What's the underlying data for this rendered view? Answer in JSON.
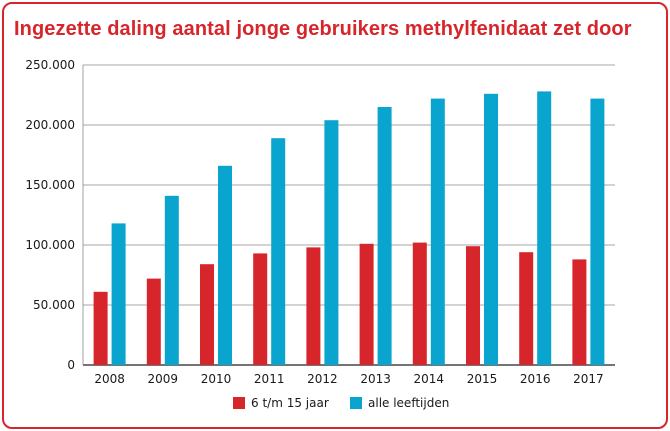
{
  "chart_data": {
    "type": "bar",
    "title": "Ingezette daling aantal jonge gebruikers methylfenidaat zet door",
    "categories": [
      "2008",
      "2009",
      "2010",
      "2011",
      "2012",
      "2013",
      "2014",
      "2015",
      "2016",
      "2017"
    ],
    "series": [
      {
        "name": "6 t/m 15 jaar",
        "color": "#d7262b",
        "values": [
          61000,
          72000,
          84000,
          93000,
          98000,
          101000,
          102000,
          99000,
          94000,
          88000
        ]
      },
      {
        "name": "alle leeftijden",
        "color": "#0aa5cf",
        "values": [
          118000,
          141000,
          166000,
          189000,
          204000,
          215000,
          222000,
          226000,
          228000,
          222000
        ]
      }
    ],
    "ylim": [
      0,
      250000
    ],
    "yticks": [
      0,
      50000,
      100000,
      150000,
      200000,
      250000
    ],
    "ytick_labels": [
      "0",
      "50.000",
      "100.000",
      "150.000",
      "200.000",
      "250.000"
    ],
    "grid": true,
    "legend_position": "bottom-center"
  }
}
